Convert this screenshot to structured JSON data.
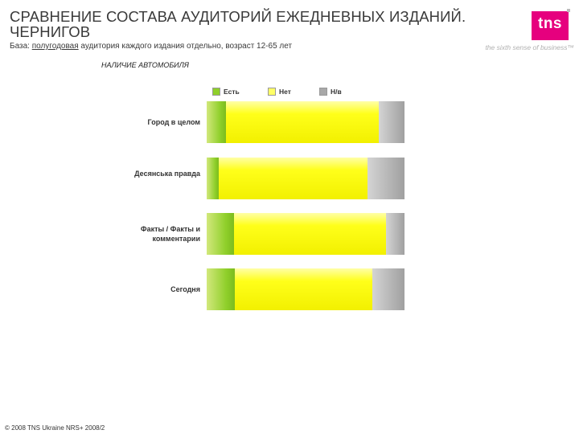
{
  "header": {
    "title": "СРАВНЕНИЕ СОСТАВА АУДИТОРИЙ ЕЖЕДНЕВНЫХ ИЗДАНИЙ. ЧЕРНИГОВ",
    "base_prefix": "База: ",
    "base_underlined": "полугодовая",
    "base_suffix": " аудитория каждого издания отдельно, возраст 12-65 лет"
  },
  "logo": {
    "text": "tns",
    "tagline": "the sixth sense of business™"
  },
  "footer": "© 2008 TNS Ukraine NRS+ 2008/2",
  "colors": {
    "brand": "#e6007e",
    "yes": "#8fcf2a",
    "no": "#ffff1a",
    "na": "#a8a8a8"
  },
  "chart_data": {
    "type": "bar",
    "orientation": "horizontal-stacked-100",
    "title": "НАЛИЧИЕ АВТОМОБИЛЯ",
    "legend": {
      "position": "top",
      "entries": [
        "Есть",
        "Нет",
        "Н/в"
      ]
    },
    "categories": [
      "Город в целом",
      "Десянська правда",
      "Факты / Факты и комментарии",
      "Сегодня"
    ],
    "series": [
      {
        "name": "Есть",
        "values": [
          10,
          6,
          14,
          14
        ]
      },
      {
        "name": "Нет",
        "values": [
          78,
          75,
          77,
          68
        ]
      },
      {
        "name": "Н/в",
        "values": [
          13,
          19,
          9,
          16
        ]
      }
    ],
    "labels": [
      [
        "10%",
        "78%",
        "13%"
      ],
      [
        "6%",
        "75%",
        "19%"
      ],
      [
        "14%",
        "77%",
        "9%"
      ],
      [
        "14%",
        "68%",
        "16%"
      ]
    ]
  }
}
